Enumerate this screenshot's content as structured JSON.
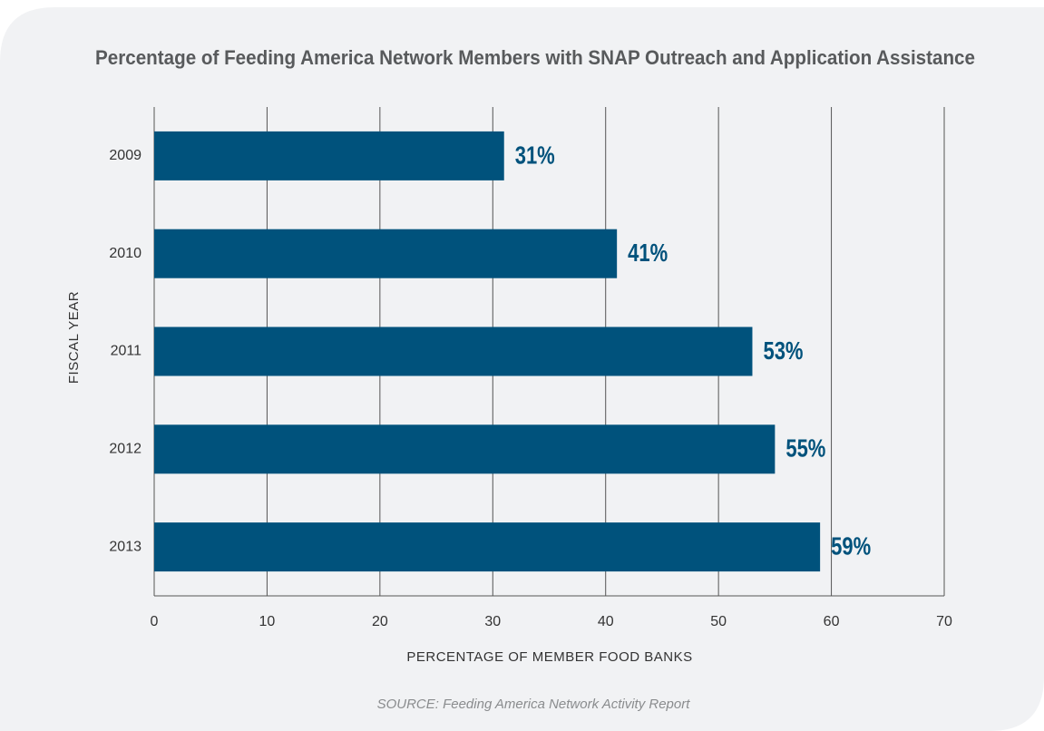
{
  "chart_data": {
    "type": "bar",
    "orientation": "horizontal",
    "title": "Percentage of Feeding America Network Members with SNAP Outreach and Application Assistance",
    "categories": [
      "2009",
      "2010",
      "2011",
      "2012",
      "2013"
    ],
    "values": [
      31,
      41,
      53,
      55,
      59
    ],
    "value_labels": [
      "31%",
      "41%",
      "53%",
      "55%",
      "59%"
    ],
    "color": "#00527c",
    "xlim": [
      0,
      70
    ],
    "xticks": [
      0,
      10,
      20,
      30,
      40,
      50,
      60,
      70
    ],
    "xlabel": "PERCENTAGE OF MEMBER FOOD BANKS",
    "ylabel": "FISCAL YEAR",
    "grid": true,
    "source": "SOURCE: Feeding America Network Activity Report"
  }
}
